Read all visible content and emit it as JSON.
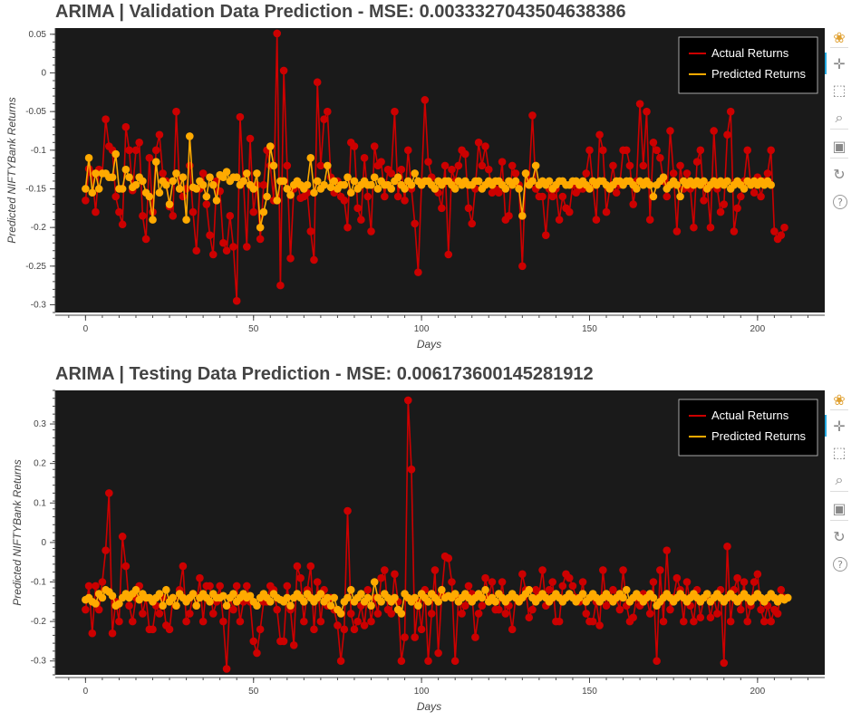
{
  "chart_data": [
    {
      "type": "line",
      "title": "ARIMA | Validation Data Prediction - MSE: 0.0033327043504638386",
      "xlabel": "Days",
      "ylabel": "Predicted NIFTYBank Returns",
      "xlim": [
        -9,
        220
      ],
      "ylim": [
        -0.31,
        0.058
      ],
      "xticks": [
        0,
        50,
        100,
        150,
        200
      ],
      "yticks": [
        0.05,
        0,
        -0.05,
        -0.1,
        -0.15,
        -0.2,
        -0.25,
        -0.3
      ],
      "ytick_labels": [
        "0.05",
        "0",
        "-0.05",
        "-0.1",
        "-0.15",
        "-0.2",
        "-0.25",
        "-0.3"
      ],
      "background": "#1a1a1a",
      "legend_position": "top-right",
      "series": [
        {
          "name": "Actual Returns",
          "color": "#cc0000",
          "values": [
            -0.165,
            -0.124,
            -0.13,
            -0.18,
            -0.125,
            -0.13,
            -0.06,
            -0.095,
            -0.1,
            -0.16,
            -0.18,
            -0.196,
            -0.07,
            -0.1,
            -0.152,
            -0.1,
            -0.09,
            -0.185,
            -0.215,
            -0.11,
            -0.18,
            -0.1,
            -0.08,
            -0.13,
            -0.14,
            -0.173,
            -0.185,
            -0.05,
            -0.15,
            -0.16,
            -0.15,
            -0.12,
            -0.18,
            -0.23,
            -0.15,
            -0.13,
            -0.17,
            -0.21,
            -0.235,
            -0.14,
            -0.153,
            -0.22,
            -0.23,
            -0.185,
            -0.225,
            -0.295,
            -0.057,
            -0.14,
            -0.225,
            -0.085,
            -0.18,
            -0.145,
            -0.215,
            -0.145,
            -0.1,
            -0.12,
            -0.165,
            0.051,
            -0.275,
            0.003,
            -0.12,
            -0.24,
            -0.15,
            -0.14,
            -0.162,
            -0.16,
            -0.155,
            -0.205,
            -0.242,
            -0.012,
            -0.12,
            -0.06,
            -0.05,
            -0.135,
            -0.155,
            -0.14,
            -0.16,
            -0.165,
            -0.2,
            -0.09,
            -0.095,
            -0.175,
            -0.19,
            -0.11,
            -0.16,
            -0.205,
            -0.095,
            -0.12,
            -0.115,
            -0.16,
            -0.125,
            -0.13,
            -0.05,
            -0.16,
            -0.125,
            -0.165,
            -0.1,
            -0.15,
            -0.195,
            -0.258,
            -0.145,
            -0.035,
            -0.115,
            -0.135,
            -0.15,
            -0.155,
            -0.175,
            -0.12,
            -0.235,
            -0.125,
            -0.14,
            -0.12,
            -0.1,
            -0.105,
            -0.175,
            -0.195,
            -0.15,
            -0.09,
            -0.12,
            -0.095,
            -0.125,
            -0.155,
            -0.15,
            -0.155,
            -0.115,
            -0.19,
            -0.185,
            -0.12,
            -0.13,
            -0.145,
            -0.25,
            -0.13,
            -0.14,
            -0.055,
            -0.15,
            -0.16,
            -0.16,
            -0.21,
            -0.15,
            -0.16,
            -0.15,
            -0.19,
            -0.16,
            -0.175,
            -0.18,
            -0.145,
            -0.155,
            -0.15,
            -0.15,
            -0.13,
            -0.1,
            -0.145,
            -0.19,
            -0.08,
            -0.1,
            -0.18,
            -0.15,
            -0.12,
            -0.155,
            -0.145,
            -0.1,
            -0.1,
            -0.12,
            -0.17,
            -0.14,
            -0.04,
            -0.12,
            -0.05,
            -0.19,
            -0.09,
            -0.1,
            -0.11,
            -0.14,
            -0.16,
            -0.075,
            -0.13,
            -0.205,
            -0.12,
            -0.15,
            -0.13,
            -0.15,
            -0.2,
            -0.115,
            -0.1,
            -0.165,
            -0.145,
            -0.2,
            -0.075,
            -0.15,
            -0.18,
            -0.17,
            -0.08,
            -0.05,
            -0.205,
            -0.175,
            -0.16,
            -0.14,
            -0.1,
            -0.145,
            -0.155,
            -0.135,
            -0.16,
            -0.14,
            -0.13,
            -0.1,
            -0.205,
            -0.215,
            -0.21,
            -0.2
          ]
        },
        {
          "name": "Predicted Returns",
          "color": "#ffaa00",
          "values": [
            -0.15,
            -0.11,
            -0.155,
            -0.13,
            -0.15,
            -0.13,
            -0.13,
            -0.135,
            -0.135,
            -0.105,
            -0.15,
            -0.15,
            -0.125,
            -0.135,
            -0.148,
            -0.145,
            -0.135,
            -0.14,
            -0.155,
            -0.16,
            -0.19,
            -0.115,
            -0.155,
            -0.14,
            -0.145,
            -0.17,
            -0.14,
            -0.13,
            -0.15,
            -0.135,
            -0.19,
            -0.082,
            -0.148,
            -0.15,
            -0.14,
            -0.145,
            -0.16,
            -0.135,
            -0.145,
            -0.165,
            -0.132,
            -0.135,
            -0.128,
            -0.14,
            -0.135,
            -0.135,
            -0.145,
            -0.14,
            -0.13,
            -0.145,
            -0.15,
            -0.13,
            -0.2,
            -0.18,
            -0.16,
            -0.095,
            -0.12,
            -0.165,
            -0.14,
            -0.14,
            -0.15,
            -0.158,
            -0.145,
            -0.14,
            -0.145,
            -0.15,
            -0.145,
            -0.11,
            -0.155,
            -0.14,
            -0.15,
            -0.145,
            -0.12,
            -0.148,
            -0.14,
            -0.15,
            -0.145,
            -0.145,
            -0.135,
            -0.155,
            -0.14,
            -0.15,
            -0.145,
            -0.14,
            -0.145,
            -0.145,
            -0.135,
            -0.15,
            -0.14,
            -0.145,
            -0.145,
            -0.15,
            -0.14,
            -0.135,
            -0.145,
            -0.15,
            -0.14,
            -0.145,
            -0.13,
            -0.14,
            -0.145,
            -0.14,
            -0.14,
            -0.145,
            -0.15,
            -0.14,
            -0.145,
            -0.14,
            -0.14,
            -0.145,
            -0.15,
            -0.14,
            -0.145,
            -0.14,
            -0.145,
            -0.145,
            -0.14,
            -0.14,
            -0.15,
            -0.145,
            -0.14,
            -0.145,
            -0.14,
            -0.14,
            -0.145,
            -0.15,
            -0.14,
            -0.145,
            -0.14,
            -0.15,
            -0.185,
            -0.13,
            -0.145,
            -0.14,
            -0.12,
            -0.145,
            -0.14,
            -0.145,
            -0.14,
            -0.15,
            -0.145,
            -0.14,
            -0.14,
            -0.145,
            -0.145,
            -0.14,
            -0.14,
            -0.145,
            -0.14,
            -0.145,
            -0.15,
            -0.14,
            -0.145,
            -0.14,
            -0.14,
            -0.145,
            -0.15,
            -0.145,
            -0.14,
            -0.14,
            -0.145,
            -0.14,
            -0.14,
            -0.145,
            -0.15,
            -0.14,
            -0.145,
            -0.14,
            -0.145,
            -0.16,
            -0.145,
            -0.14,
            -0.135,
            -0.15,
            -0.145,
            -0.14,
            -0.145,
            -0.16,
            -0.14,
            -0.145,
            -0.14,
            -0.145,
            -0.14,
            -0.145,
            -0.14,
            -0.15,
            -0.145,
            -0.14,
            -0.145,
            -0.14,
            -0.145,
            -0.14,
            -0.15,
            -0.145,
            -0.14,
            -0.145,
            -0.15,
            -0.14,
            -0.145,
            -0.14,
            -0.145,
            -0.14,
            -0.145,
            -0.14,
            -0.145
          ]
        }
      ]
    },
    {
      "type": "line",
      "title": "ARIMA | Testing Data Prediction - MSE: 0.006173600145281912",
      "xlabel": "Days",
      "ylabel": "Predicted NIFTYBank Returns",
      "xlim": [
        -9,
        220
      ],
      "ylim": [
        -0.335,
        0.385
      ],
      "xticks": [
        0,
        50,
        100,
        150,
        200
      ],
      "yticks": [
        0.3,
        0.2,
        0.1,
        0,
        -0.1,
        -0.2,
        -0.3
      ],
      "ytick_labels": [
        "0.3",
        "0.2",
        "0.1",
        "0",
        "-0.1",
        "-0.2",
        "-0.3"
      ],
      "background": "#1a1a1a",
      "legend_position": "top-right",
      "series": [
        {
          "name": "Actual Returns",
          "color": "#cc0000",
          "values": [
            -0.17,
            -0.11,
            -0.23,
            -0.11,
            -0.17,
            -0.1,
            -0.02,
            0.125,
            -0.23,
            -0.15,
            -0.2,
            0.015,
            -0.06,
            -0.16,
            -0.2,
            -0.14,
            -0.11,
            -0.18,
            -0.14,
            -0.22,
            -0.22,
            -0.16,
            -0.18,
            -0.14,
            -0.21,
            -0.22,
            -0.14,
            -0.16,
            -0.12,
            -0.06,
            -0.2,
            -0.18,
            -0.13,
            -0.16,
            -0.09,
            -0.2,
            -0.11,
            -0.11,
            -0.18,
            -0.15,
            -0.11,
            -0.2,
            -0.32,
            -0.14,
            -0.17,
            -0.11,
            -0.2,
            -0.15,
            -0.11,
            -0.15,
            -0.25,
            -0.28,
            -0.22,
            -0.15,
            -0.15,
            -0.11,
            -0.12,
            -0.17,
            -0.25,
            -0.25,
            -0.11,
            -0.17,
            -0.26,
            -0.06,
            -0.09,
            -0.2,
            -0.12,
            -0.06,
            -0.22,
            -0.1,
            -0.2,
            -0.12,
            -0.16,
            -0.14,
            -0.17,
            -0.21,
            -0.3,
            -0.22,
            0.08,
            -0.18,
            -0.22,
            -0.2,
            -0.16,
            -0.21,
            -0.12,
            -0.2,
            -0.14,
            -0.18,
            -0.09,
            -0.07,
            -0.17,
            -0.18,
            -0.08,
            -0.15,
            -0.3,
            -0.24,
            0.36,
            0.185,
            -0.24,
            -0.15,
            -0.22,
            -0.12,
            -0.3,
            -0.18,
            -0.07,
            -0.28,
            -0.13,
            -0.035,
            -0.04,
            -0.1,
            -0.3,
            -0.14,
            -0.18,
            -0.16,
            -0.11,
            -0.13,
            -0.24,
            -0.18,
            -0.16,
            -0.09,
            -0.14,
            -0.1,
            -0.17,
            -0.17,
            -0.1,
            -0.18,
            -0.16,
            -0.22,
            -0.14,
            -0.15,
            -0.08,
            -0.12,
            -0.19,
            -0.17,
            -0.12,
            -0.13,
            -0.07,
            -0.16,
            -0.12,
            -0.1,
            -0.2,
            -0.2,
            -0.11,
            -0.08,
            -0.09,
            -0.11,
            -0.14,
            -0.15,
            -0.1,
            -0.18,
            -0.2,
            -0.2,
            -0.15,
            -0.21,
            -0.07,
            -0.16,
            -0.14,
            -0.12,
            -0.14,
            -0.17,
            -0.07,
            -0.16,
            -0.2,
            -0.19,
            -0.14,
            -0.16,
            -0.13,
            -0.14,
            -0.18,
            -0.1,
            -0.3,
            -0.07,
            -0.2,
            -0.02,
            -0.17,
            -0.14,
            -0.09,
            -0.12,
            -0.2,
            -0.1,
            -0.16,
            -0.2,
            -0.12,
            -0.19,
            -0.14,
            -0.13,
            -0.19,
            -0.14,
            -0.18,
            -0.12,
            -0.305,
            -0.01,
            -0.2,
            -0.12,
            -0.09,
            -0.17,
            -0.1,
            -0.2,
            -0.16,
            -0.1,
            -0.08,
            -0.17,
            -0.2,
            -0.16,
            -0.2,
            -0.17,
            -0.18,
            -0.12,
            -0.14
          ]
        },
        {
          "name": "Predicted Returns",
          "color": "#ffaa00",
          "values": [
            -0.145,
            -0.14,
            -0.15,
            -0.155,
            -0.13,
            -0.14,
            -0.12,
            -0.125,
            -0.135,
            -0.16,
            -0.155,
            -0.14,
            -0.13,
            -0.14,
            -0.13,
            -0.12,
            -0.145,
            -0.13,
            -0.14,
            -0.14,
            -0.15,
            -0.14,
            -0.13,
            -0.16,
            -0.12,
            -0.15,
            -0.14,
            -0.16,
            -0.13,
            -0.14,
            -0.15,
            -0.14,
            -0.13,
            -0.16,
            -0.14,
            -0.13,
            -0.14,
            -0.15,
            -0.13,
            -0.14,
            -0.14,
            -0.135,
            -0.16,
            -0.14,
            -0.13,
            -0.15,
            -0.14,
            -0.13,
            -0.14,
            -0.135,
            -0.15,
            -0.16,
            -0.14,
            -0.13,
            -0.14,
            -0.15,
            -0.13,
            -0.14,
            -0.145,
            -0.15,
            -0.14,
            -0.16,
            -0.14,
            -0.13,
            -0.14,
            -0.15,
            -0.13,
            -0.14,
            -0.15,
            -0.14,
            -0.13,
            -0.15,
            -0.14,
            -0.16,
            -0.14,
            -0.17,
            -0.18,
            -0.15,
            -0.14,
            -0.12,
            -0.15,
            -0.14,
            -0.13,
            -0.15,
            -0.14,
            -0.16,
            -0.1,
            -0.14,
            -0.15,
            -0.13,
            -0.14,
            -0.15,
            -0.14,
            -0.17,
            -0.18,
            -0.13,
            -0.14,
            -0.15,
            -0.14,
            -0.16,
            -0.13,
            -0.14,
            -0.15,
            -0.13,
            -0.14,
            -0.15,
            -0.12,
            -0.14,
            -0.135,
            -0.14,
            -0.13,
            -0.15,
            -0.14,
            -0.13,
            -0.14,
            -0.15,
            -0.14,
            -0.13,
            -0.14,
            -0.12,
            -0.15,
            -0.14,
            -0.15,
            -0.13,
            -0.14,
            -0.15,
            -0.14,
            -0.13,
            -0.14,
            -0.15,
            -0.14,
            -0.13,
            -0.12,
            -0.14,
            -0.15,
            -0.14,
            -0.13,
            -0.14,
            -0.15,
            -0.14,
            -0.13,
            -0.14,
            -0.15,
            -0.14,
            -0.13,
            -0.14,
            -0.15,
            -0.14,
            -0.13,
            -0.15,
            -0.14,
            -0.13,
            -0.14,
            -0.15,
            -0.14,
            -0.13,
            -0.14,
            -0.15,
            -0.14,
            -0.13,
            -0.14,
            -0.12,
            -0.15,
            -0.14,
            -0.13,
            -0.14,
            -0.15,
            -0.14,
            -0.13,
            -0.14,
            -0.16,
            -0.15,
            -0.14,
            -0.13,
            -0.14,
            -0.15,
            -0.14,
            -0.13,
            -0.14,
            -0.15,
            -0.14,
            -0.13,
            -0.14,
            -0.15,
            -0.14,
            -0.13,
            -0.15,
            -0.14,
            -0.13,
            -0.14,
            -0.15,
            -0.14,
            -0.13,
            -0.14,
            -0.15,
            -0.14,
            -0.13,
            -0.14,
            -0.15,
            -0.14,
            -0.13,
            -0.14,
            -0.15,
            -0.14,
            -0.13,
            -0.14,
            -0.15,
            -0.14,
            -0.145,
            -0.14
          ]
        }
      ]
    }
  ],
  "toolbar": {
    "tools": [
      {
        "icon": "bokeh-logo-icon"
      },
      {
        "icon": "pan-icon"
      },
      {
        "icon": "box-zoom-icon"
      },
      {
        "icon": "wheel-zoom-icon"
      },
      {
        "icon": "save-icon"
      },
      {
        "icon": "reset-icon"
      },
      {
        "icon": "help-icon"
      }
    ]
  }
}
